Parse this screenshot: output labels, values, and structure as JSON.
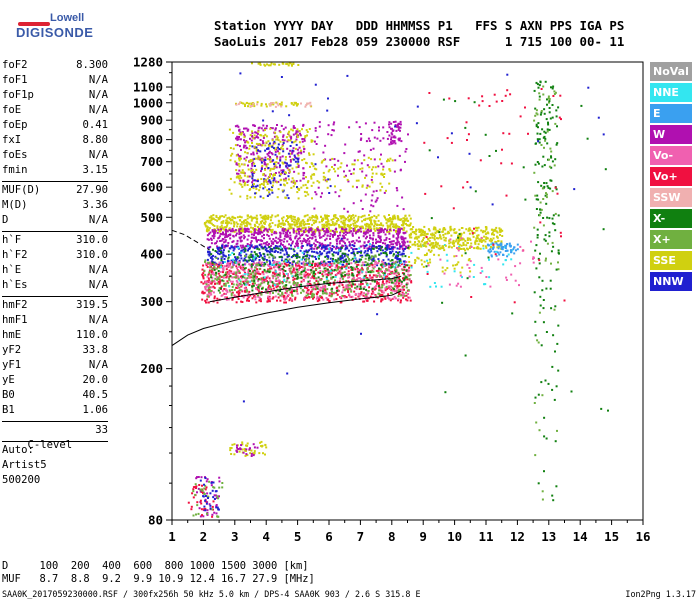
{
  "logo": {
    "brand": "Lowell",
    "product": "DIGISONDE"
  },
  "header": {
    "line1": "Station YYYY DAY   DDD HHMMSS P1   FFS S AXN PPS IGA PS",
    "line2": "SaoLuis 2017 Feb28 059 230000 RSF      1 715 100 00- 11"
  },
  "params": {
    "group1": [
      {
        "label": "foF2",
        "value": "8.300"
      },
      {
        "label": "foF1",
        "value": "N/A"
      },
      {
        "label": "foF1p",
        "value": "N/A"
      },
      {
        "label": "foE",
        "value": "N/A"
      },
      {
        "label": "foEp",
        "value": "0.41"
      },
      {
        "label": "fxI",
        "value": "8.80"
      },
      {
        "label": "foEs",
        "value": "N/A"
      },
      {
        "label": "fmin",
        "value": "3.15"
      }
    ],
    "group2": [
      {
        "label": "MUF(D)",
        "value": "27.90"
      },
      {
        "label": "M(D)",
        "value": "3.36"
      },
      {
        "label": "D",
        "value": "N/A"
      }
    ],
    "group3": [
      {
        "label": "h`F",
        "value": "310.0"
      },
      {
        "label": "h`F2",
        "value": "310.0"
      },
      {
        "label": "h`E",
        "value": "N/A"
      },
      {
        "label": "h`Es",
        "value": "N/A"
      }
    ],
    "group4": [
      {
        "label": "hmF2",
        "value": "319.5"
      },
      {
        "label": "hmF1",
        "value": "N/A"
      },
      {
        "label": "hmE",
        "value": "110.0"
      },
      {
        "label": "yF2",
        "value": "33.8"
      },
      {
        "label": "yF1",
        "value": "N/A"
      },
      {
        "label": "yE",
        "value": "20.0"
      },
      {
        "label": "B0",
        "value": "40.5"
      },
      {
        "label": "B1",
        "value": "1.06"
      }
    ],
    "clevel": {
      "label": "C-level",
      "value": "33"
    },
    "auto": [
      "Auto:",
      "Artist5",
      "500200"
    ]
  },
  "legend": [
    {
      "label": "NoVal",
      "color": "#a0a0a0"
    },
    {
      "label": "NNE",
      "color": "#33e6f0"
    },
    {
      "label": "E",
      "color": "#3aa0f0"
    },
    {
      "label": "W",
      "color": "#b010b0"
    },
    {
      "label": "Vo-",
      "color": "#f060b0"
    },
    {
      "label": "Vo+",
      "color": "#f01040"
    },
    {
      "label": "SSW",
      "color": "#f0b0b0"
    },
    {
      "label": "X-",
      "color": "#108010"
    },
    {
      "label": "X+",
      "color": "#70b040"
    },
    {
      "label": "SSE",
      "color": "#d0d010"
    },
    {
      "label": "NNW",
      "color": "#2020d0"
    }
  ],
  "bottom": {
    "line1": "D     100  200  400  600  800 1000 1500 3000 [km]",
    "line2": "MUF   8.7  8.8  9.2  9.9 10.9 12.4 16.7 27.9 [MHz]"
  },
  "footer": {
    "left": "SAA0K_2017059230000.RSF / 300fx256h 50 kHz 5.0 km / DPS-4 SAA0K 903 / 2.6 S 315.8 E",
    "right": "Ion2Png 1.3.17"
  },
  "chart_data": {
    "type": "scatter",
    "x_ticks": [
      "1",
      "2",
      "3",
      "4",
      "5",
      "6",
      "7",
      "8",
      "9",
      "10",
      "11",
      "12",
      "13",
      "14",
      "15",
      "16"
    ],
    "y_ticks": [
      "80",
      "200",
      "300",
      "400",
      "500",
      "600",
      "700",
      "800",
      "900",
      "1000",
      "1100",
      "1280"
    ],
    "xlim": [
      1,
      16
    ],
    "ylim": [
      80,
      1280
    ],
    "grid": false,
    "legend_position": "right",
    "traces": [
      {
        "style": "solid",
        "x": [
          1.0,
          1.5,
          2.0,
          3.0,
          4.0,
          5.0,
          6.0,
          7.0,
          7.5,
          8.0,
          8.3
        ],
        "y": [
          230,
          245,
          255,
          268,
          280,
          290,
          298,
          305,
          308,
          312,
          320
        ]
      },
      {
        "style": "dashed",
        "x": [
          1.0,
          1.4,
          1.8,
          2.2
        ],
        "y": [
          462,
          450,
          430,
          410
        ]
      },
      {
        "style": "solid",
        "x": [
          2.2,
          3.0,
          4.0,
          5.0,
          6.0,
          7.0,
          8.0,
          8.3
        ],
        "y": [
          300,
          308,
          318,
          328,
          335,
          340,
          345,
          350
        ]
      }
    ],
    "echo_regions": [
      {
        "color": "#d0d010",
        "x": [
          2.0,
          8.6
        ],
        "y": [
          460,
          510
        ],
        "n": 700
      },
      {
        "color": "#d0d010",
        "x": [
          8.5,
          11.5
        ],
        "y": [
          415,
          475
        ],
        "n": 320
      },
      {
        "color": "#b010b0",
        "x": [
          2.1,
          8.5
        ],
        "y": [
          415,
          470
        ],
        "n": 600
      },
      {
        "color": "#2020d0",
        "x": [
          2.1,
          8.4
        ],
        "y": [
          375,
          425
        ],
        "n": 450
      },
      {
        "color": "#f01040",
        "x": [
          1.9,
          8.6
        ],
        "y": [
          300,
          380
        ],
        "n": 700
      },
      {
        "color": "#f060b0",
        "x": [
          2.0,
          8.6
        ],
        "y": [
          305,
          385
        ],
        "n": 500
      },
      {
        "color": "#70b040",
        "x": [
          2.0,
          8.6
        ],
        "y": [
          310,
          400
        ],
        "n": 350
      },
      {
        "color": "#108010",
        "x": [
          2.2,
          8.5
        ],
        "y": [
          320,
          420
        ],
        "n": 250
      },
      {
        "color": "#33e6f0",
        "x": [
          2.5,
          11.8
        ],
        "y": [
          330,
          430
        ],
        "n": 90
      },
      {
        "color": "#3aa0f0",
        "x": [
          11.0,
          12.0
        ],
        "y": [
          395,
          430
        ],
        "n": 60
      },
      {
        "color": "#b010b0",
        "x": [
          3.0,
          5.2
        ],
        "y": [
          620,
          880
        ],
        "n": 260
      },
      {
        "color": "#d0d010",
        "x": [
          2.8,
          5.5
        ],
        "y": [
          560,
          860
        ],
        "n": 200
      },
      {
        "color": "#2020d0",
        "x": [
          3.5,
          5.0
        ],
        "y": [
          560,
          800
        ],
        "n": 80
      },
      {
        "color": "#b010b0",
        "x": [
          5.5,
          8.5
        ],
        "y": [
          520,
          900
        ],
        "n": 120
      },
      {
        "color": "#d0d010",
        "x": [
          3.0,
          8.0
        ],
        "y": [
          590,
          730
        ],
        "n": 150
      },
      {
        "color": "#d0d010",
        "x": [
          3.0,
          5.4
        ],
        "y": [
          980,
          1010
        ],
        "n": 45
      },
      {
        "color": "#f0b0b0",
        "x": [
          3.0,
          5.4
        ],
        "y": [
          980,
          1010
        ],
        "n": 25
      },
      {
        "color": "#d0d010",
        "x": [
          3.5,
          5.0
        ],
        "y": [
          1255,
          1285
        ],
        "n": 30
      },
      {
        "color": "#108010",
        "x": [
          12.5,
          13.3
        ],
        "y": [
          90,
          1150
        ],
        "n": 150
      },
      {
        "color": "#70b040",
        "x": [
          12.5,
          13.3
        ],
        "y": [
          90,
          1150
        ],
        "n": 60
      },
      {
        "color": "#f01040",
        "x": [
          9.0,
          13.5
        ],
        "y": [
          300,
          1100
        ],
        "n": 55
      },
      {
        "color": "#f060b0",
        "x": [
          9.0,
          12.5
        ],
        "y": [
          330,
          450
        ],
        "n": 40
      },
      {
        "color": "#b010b0",
        "x": [
          7.8,
          8.3
        ],
        "y": [
          780,
          900
        ],
        "n": 40
      },
      {
        "color": "#2020d0",
        "x": [
          2.9,
          15.5
        ],
        "y": [
          80,
          1280
        ],
        "n": 35
      },
      {
        "color": "#108010",
        "x": [
          9.0,
          15.0
        ],
        "y": [
          150,
          1200
        ],
        "n": 40
      },
      {
        "color": "#d0d010",
        "x": [
          8.5,
          10.5
        ],
        "y": [
          360,
          430
        ],
        "n": 60
      },
      {
        "color": "#b010b0",
        "x": [
          1.7,
          2.5
        ],
        "y": [
          82,
          105
        ],
        "n": 40
      },
      {
        "color": "#f01040",
        "x": [
          1.5,
          2.3
        ],
        "y": [
          82,
          100
        ],
        "n": 30
      },
      {
        "color": "#70b040",
        "x": [
          1.6,
          2.6
        ],
        "y": [
          82,
          102
        ],
        "n": 30
      },
      {
        "color": "#2020d0",
        "x": [
          1.8,
          2.5
        ],
        "y": [
          84,
          104
        ],
        "n": 25
      },
      {
        "color": "#d0d010",
        "x": [
          2.8,
          4.0
        ],
        "y": [
          118,
          130
        ],
        "n": 40
      },
      {
        "color": "#b010b0",
        "x": [
          3.0,
          3.8
        ],
        "y": [
          118,
          128
        ],
        "n": 20
      }
    ]
  }
}
